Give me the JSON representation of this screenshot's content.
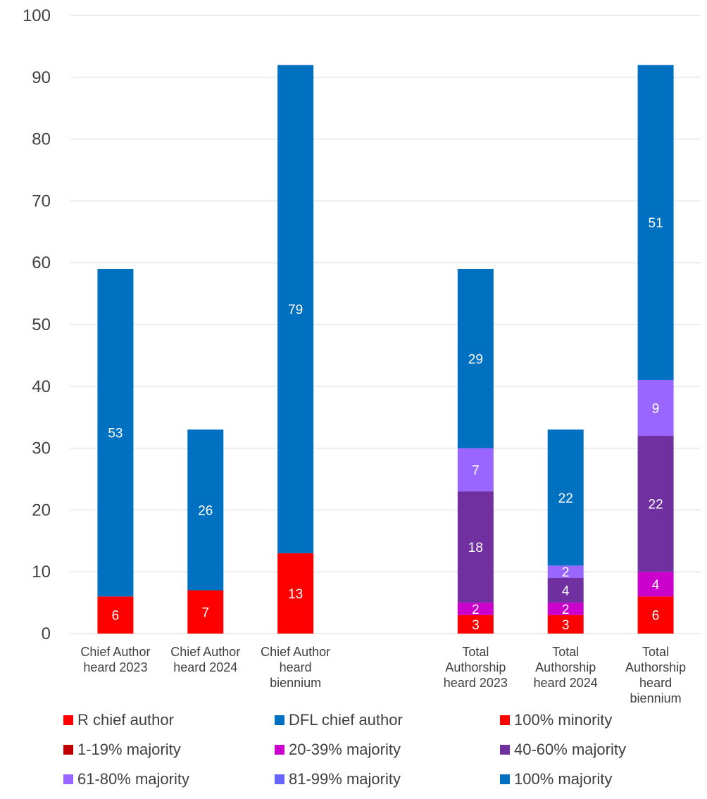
{
  "chart_data": {
    "type": "bar",
    "stacked": true,
    "title": "",
    "xlabel": "",
    "ylabel": "",
    "ylim": [
      0,
      100
    ],
    "yticks": [
      0,
      10,
      20,
      30,
      40,
      50,
      60,
      70,
      80,
      90,
      100
    ],
    "grid": true,
    "legend_position": "bottom",
    "categories": [
      "Chief Author heard 2023",
      "Chief Author heard 2024",
      "Chief Author heard biennium",
      "",
      "Total Authorship heard 2023",
      "Total Authorship heard 2024",
      "Total Authorship heard biennium"
    ],
    "category_label_lines": [
      [
        "Chief Author",
        "heard 2023"
      ],
      [
        "Chief Author",
        "heard 2024"
      ],
      [
        "Chief Author",
        "heard",
        "biennium"
      ],
      [],
      [
        "Total",
        "Authorship",
        "heard 2023"
      ],
      [
        "Total",
        "Authorship",
        "heard 2024"
      ],
      [
        "Total",
        "Authorship",
        "heard",
        "biennium"
      ]
    ],
    "series": [
      {
        "name": "R chief author",
        "color": "#ff0000",
        "values": [
          6,
          7,
          13,
          null,
          null,
          null,
          null
        ]
      },
      {
        "name": "DFL chief author",
        "color": "#0070c0",
        "values": [
          53,
          26,
          79,
          null,
          null,
          null,
          null
        ]
      },
      {
        "name": "100% minority",
        "color": "#ff0000",
        "values": [
          null,
          null,
          null,
          null,
          3,
          3,
          6
        ]
      },
      {
        "name": "1-19% majority",
        "color": "#c00000",
        "values": [
          null,
          null,
          null,
          null,
          0,
          0,
          0
        ]
      },
      {
        "name": "20-39% majority",
        "color": "#cc00cc",
        "values": [
          null,
          null,
          null,
          null,
          2,
          2,
          4
        ]
      },
      {
        "name": "40-60% majority",
        "color": "#7030a0",
        "values": [
          null,
          null,
          null,
          null,
          18,
          4,
          22
        ]
      },
      {
        "name": "61-80% majority",
        "color": "#9966ff",
        "values": [
          null,
          null,
          null,
          null,
          7,
          2,
          9
        ]
      },
      {
        "name": "81-99% majority",
        "color": "#6666ff",
        "values": [
          null,
          null,
          null,
          null,
          0,
          0,
          0
        ]
      },
      {
        "name": "100% majority",
        "color": "#0070c0",
        "values": [
          null,
          null,
          null,
          null,
          29,
          22,
          51
        ]
      }
    ]
  },
  "colors": {
    "axis_text": "#404040",
    "gridline": "#d9d9d9",
    "data_label": "#ffffff"
  }
}
